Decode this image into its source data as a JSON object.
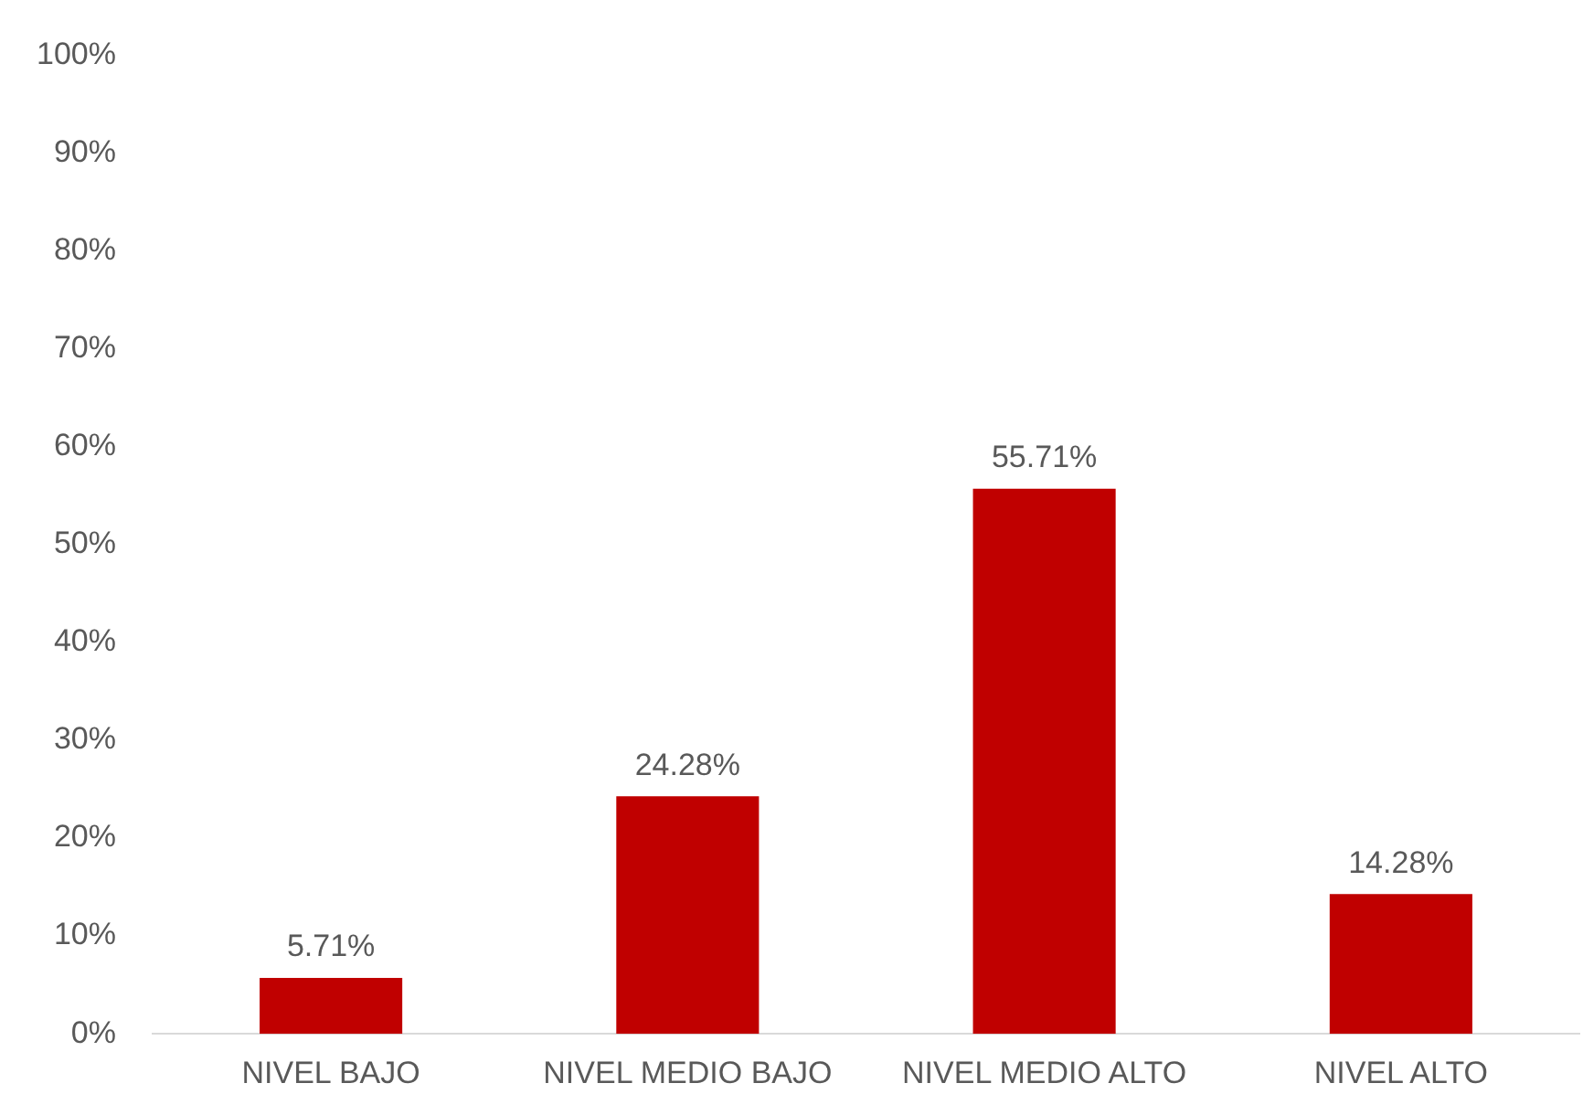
{
  "chart_data": {
    "type": "bar",
    "categories": [
      "NIVEL BAJO",
      "NIVEL MEDIO BAJO",
      "NIVEL MEDIO ALTO",
      "NIVEL ALTO"
    ],
    "values": [
      5.71,
      24.28,
      55.71,
      14.28
    ],
    "value_labels": [
      "5.71%",
      "24.28%",
      "55.71%",
      "14.28%"
    ],
    "color": "#c00000",
    "ylim": [
      0,
      100
    ],
    "yticks": [
      {
        "value": 0,
        "label": "0%"
      },
      {
        "value": 10,
        "label": "10%"
      },
      {
        "value": 20,
        "label": "20%"
      },
      {
        "value": 30,
        "label": "30%"
      },
      {
        "value": 40,
        "label": "40%"
      },
      {
        "value": 50,
        "label": "50%"
      },
      {
        "value": 60,
        "label": "60%"
      },
      {
        "value": 70,
        "label": "70%"
      },
      {
        "value": 80,
        "label": "80%"
      },
      {
        "value": 90,
        "label": "90%"
      },
      {
        "value": 100,
        "label": "100%"
      }
    ],
    "grid": false,
    "legend": false
  }
}
